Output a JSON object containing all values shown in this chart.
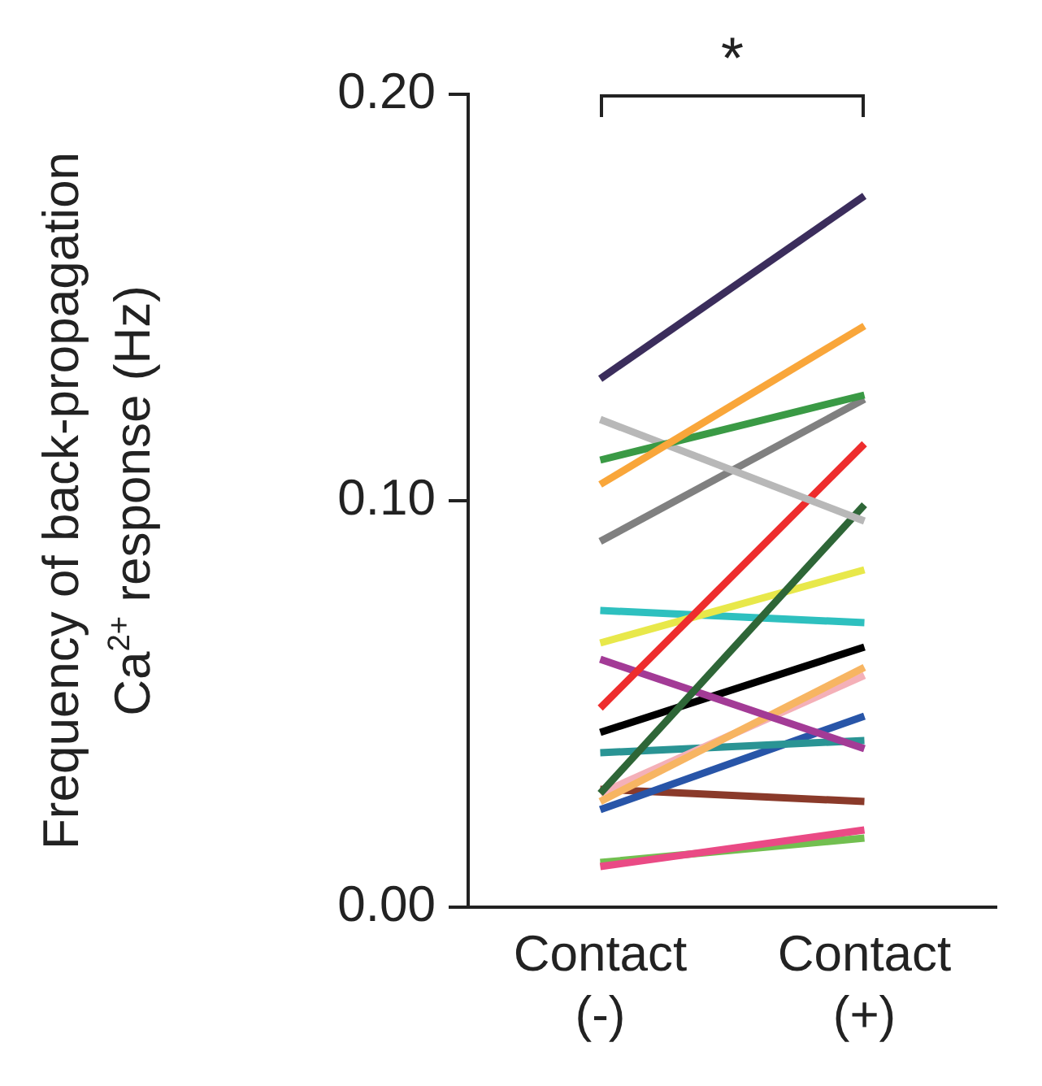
{
  "chart_data": {
    "type": "line",
    "ylabel": "Frequency of back-propagation Ca$^{2+}$ response (Hz)",
    "categories": [
      "Contact (-)",
      "Contact (+)"
    ],
    "ylim": [
      0,
      0.2
    ],
    "yticks": [
      {
        "value": 0,
        "label": "0.00"
      },
      {
        "value": 0.1,
        "label": "0.10"
      },
      {
        "value": 0.2,
        "label": "0.20"
      }
    ],
    "grid": false,
    "legend": false,
    "marker": "none",
    "line_style": "solid",
    "annotations": [
      "*"
    ],
    "series": [
      {
        "color": "#3b2d5c",
        "values": [
          0.13,
          0.175
        ]
      },
      {
        "color": "#f9a63a",
        "values": [
          0.104,
          0.143
        ]
      },
      {
        "color": "#3a9a45",
        "values": [
          0.11,
          0.126
        ]
      },
      {
        "color": "#b8b8b8",
        "values": [
          0.12,
          0.095
        ]
      },
      {
        "color": "#808080",
        "values": [
          0.09,
          0.125
        ]
      },
      {
        "color": "#ee2d2d",
        "values": [
          0.049,
          0.114
        ]
      },
      {
        "color": "#2e6637",
        "values": [
          0.028,
          0.099
        ]
      },
      {
        "color": "#e8e84a",
        "values": [
          0.065,
          0.083
        ]
      },
      {
        "color": "#2ec0bf",
        "values": [
          0.073,
          0.07
        ]
      },
      {
        "color": "#a33b96",
        "values": [
          0.061,
          0.039
        ]
      },
      {
        "color": "#000000",
        "values": [
          0.043,
          0.064
        ]
      },
      {
        "color": "#f7b562",
        "values": [
          0.026,
          0.059
        ]
      },
      {
        "color": "#f4b0b8",
        "values": [
          0.028,
          0.057
        ]
      },
      {
        "color": "#2a9494",
        "values": [
          0.038,
          0.041
        ]
      },
      {
        "color": "#2855a8",
        "values": [
          0.024,
          0.047
        ]
      },
      {
        "color": "#8a3a2a",
        "values": [
          0.029,
          0.026
        ]
      },
      {
        "color": "#ea4a85",
        "values": [
          0.01,
          0.019
        ]
      },
      {
        "color": "#72bf50",
        "values": [
          0.011,
          0.017
        ]
      }
    ]
  }
}
